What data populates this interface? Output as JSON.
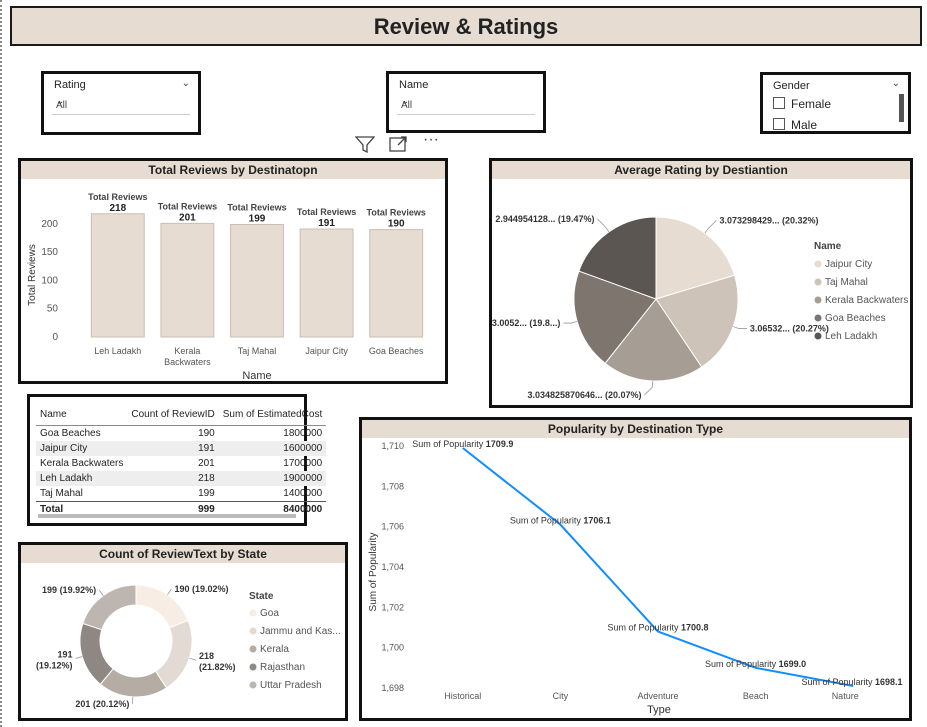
{
  "page": {
    "title": "Review & Ratings"
  },
  "slicers": {
    "rating": {
      "label": "Rating",
      "value": "All"
    },
    "name": {
      "label": "Name",
      "value": "All"
    },
    "gender": {
      "label": "Gender",
      "options": [
        "Female",
        "Male"
      ]
    }
  },
  "visual_toolbar": {
    "filter_icon": "filter-icon",
    "focus_icon": "focus-mode-icon",
    "more_icon": "more-options-icon",
    "more_label": "···"
  },
  "colors": {
    "header_bg": "#e6dcd1",
    "bar": "#e6dcd1",
    "line": "#118dff"
  },
  "bar_chart": {
    "title": "Total Reviews by Destinatopn",
    "data_label_prefix": "Total Reviews",
    "chart_data": {
      "type": "bar",
      "categories": [
        "Leh Ladakh",
        "Kerala Backwaters",
        "Taj Mahal",
        "Jaipur City",
        "Goa Beaches"
      ],
      "category_lines": [
        [
          "Leh Ladakh"
        ],
        [
          "Kerala",
          "Backwaters"
        ],
        [
          "Taj Mahal"
        ],
        [
          "Jaipur City"
        ],
        [
          "Goa Beaches"
        ]
      ],
      "values": [
        218,
        201,
        199,
        191,
        190
      ],
      "xlabel": "Name",
      "ylabel": "Total Reviews",
      "yticks": [
        0,
        50,
        100,
        150,
        200
      ],
      "ylim": [
        0,
        230
      ]
    }
  },
  "pie_chart": {
    "title": "Average Rating by Destiantion",
    "legend_title": "Name",
    "chart_data": {
      "type": "pie",
      "categories": [
        "Jaipur City",
        "Taj Mahal",
        "Kerala Backwaters",
        "Goa Beaches",
        "Leh Ladakh"
      ],
      "values": [
        3.073298429,
        3.06532,
        3.034825870646,
        3.0052,
        2.944954128
      ],
      "percents": [
        20.32,
        20.27,
        20.07,
        19.8,
        19.47
      ],
      "labels": [
        "3.073298429... (20.32%)",
        "3.06532... (20.27%)",
        "3.034825870646... (20.07%)",
        "3.0052... (19.8...)",
        "2.944954128... (19.47%)"
      ],
      "colors": [
        "#e6dcd1",
        "#cdc3b8",
        "#a69d95",
        "#7d756e",
        "#5c5652"
      ]
    }
  },
  "table": {
    "headers": [
      "Name",
      "Count of ReviewID",
      "Sum of EstimatedCost"
    ],
    "rows": [
      [
        "Goa Beaches",
        "190",
        "1800000"
      ],
      [
        "Jaipur City",
        "191",
        "1600000"
      ],
      [
        "Kerala Backwaters",
        "201",
        "1700000"
      ],
      [
        "Leh Ladakh",
        "218",
        "1900000"
      ],
      [
        "Taj Mahal",
        "199",
        "1400000"
      ]
    ],
    "total": [
      "Total",
      "999",
      "8400000"
    ]
  },
  "donut_chart": {
    "title": "Count of ReviewText by State",
    "legend_title": "State",
    "chart_data": {
      "type": "pie",
      "categories": [
        "Goa",
        "Jammu and Kas...",
        "Kerala",
        "Rajasthan",
        "Uttar Pradesh"
      ],
      "values": [
        190,
        218,
        201,
        191,
        199
      ],
      "percents": [
        19.02,
        21.82,
        20.12,
        19.12,
        19.92
      ],
      "labels": [
        "190 (19.02%)",
        "218 (21.82%)",
        "201 (20.12%)",
        "191 (19.12%)",
        "199 (19.92%)"
      ],
      "colors": [
        "#f7ede4",
        "#e3dbd3",
        "#b5aca4",
        "#8f8781",
        "#bdb6b0"
      ]
    }
  },
  "line_chart": {
    "title": "Popularity by Destination Type",
    "data_label_prefix": "Sum of Popularity",
    "chart_data": {
      "type": "line",
      "categories": [
        "Historical",
        "City",
        "Adventure",
        "Beach",
        "Nature"
      ],
      "values": [
        1709.9,
        1706.1,
        1700.8,
        1699.0,
        1698.1
      ],
      "value_labels": [
        "1709.9",
        "1706.1",
        "1700.8",
        "1699.0",
        "1698.1"
      ],
      "xlabel": "Type",
      "ylabel": "Sum of Popularity",
      "yticks": [
        1698,
        1700,
        1702,
        1704,
        1706,
        1708,
        1710
      ],
      "ytick_labels": [
        "1,698",
        "1,700",
        "1,702",
        "1,704",
        "1,706",
        "1,708",
        "1,710"
      ],
      "ylim": [
        1698,
        1710
      ]
    }
  }
}
